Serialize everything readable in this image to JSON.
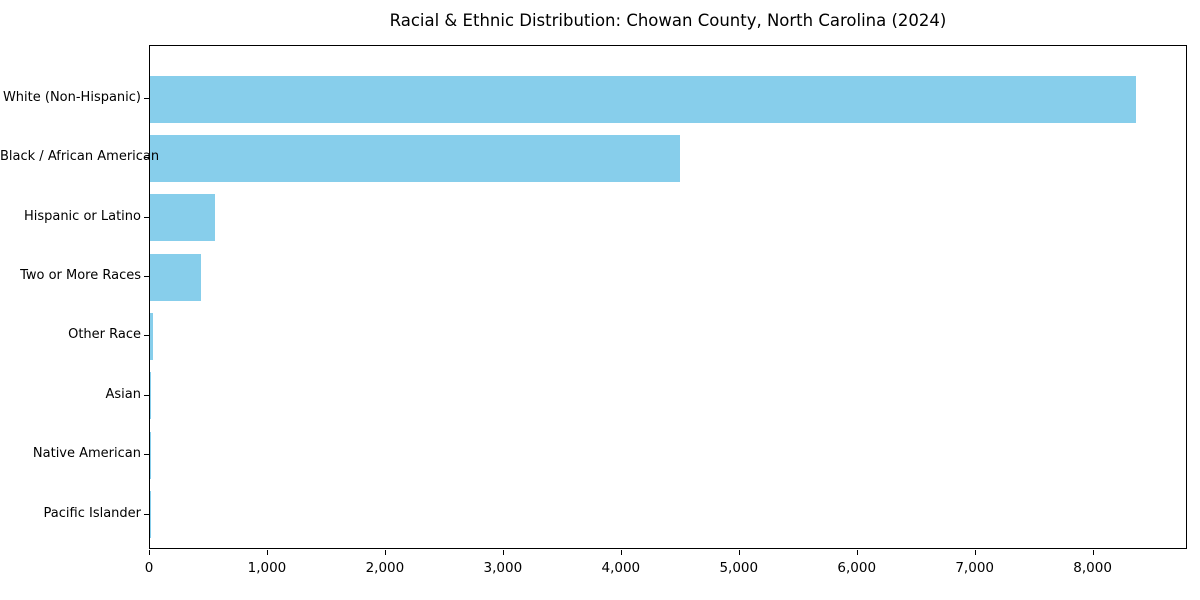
{
  "chart_data": {
    "type": "bar",
    "orientation": "horizontal",
    "title": "Racial & Ethnic Distribution: Chowan County, North Carolina (2024)",
    "xlabel": "",
    "ylabel": "",
    "categories": [
      "White (Non-Hispanic)",
      "Black / African American",
      "Hispanic or Latino",
      "Two or More Races",
      "Other Race",
      "Asian",
      "Native American",
      "Pacific Islander"
    ],
    "values": [
      8360,
      4490,
      550,
      430,
      25,
      10,
      4,
      1
    ],
    "xlim": [
      0,
      8800
    ],
    "x_ticks": [
      0,
      1000,
      2000,
      3000,
      4000,
      5000,
      6000,
      7000,
      8000
    ],
    "x_tick_labels": [
      "0",
      "1,000",
      "2,000",
      "3,000",
      "4,000",
      "5,000",
      "6,000",
      "7,000",
      "8,000"
    ],
    "bar_color": "#87CEEB",
    "background_color": "#ffffff",
    "spine_color": "#000000",
    "grid": false,
    "legend": null
  }
}
